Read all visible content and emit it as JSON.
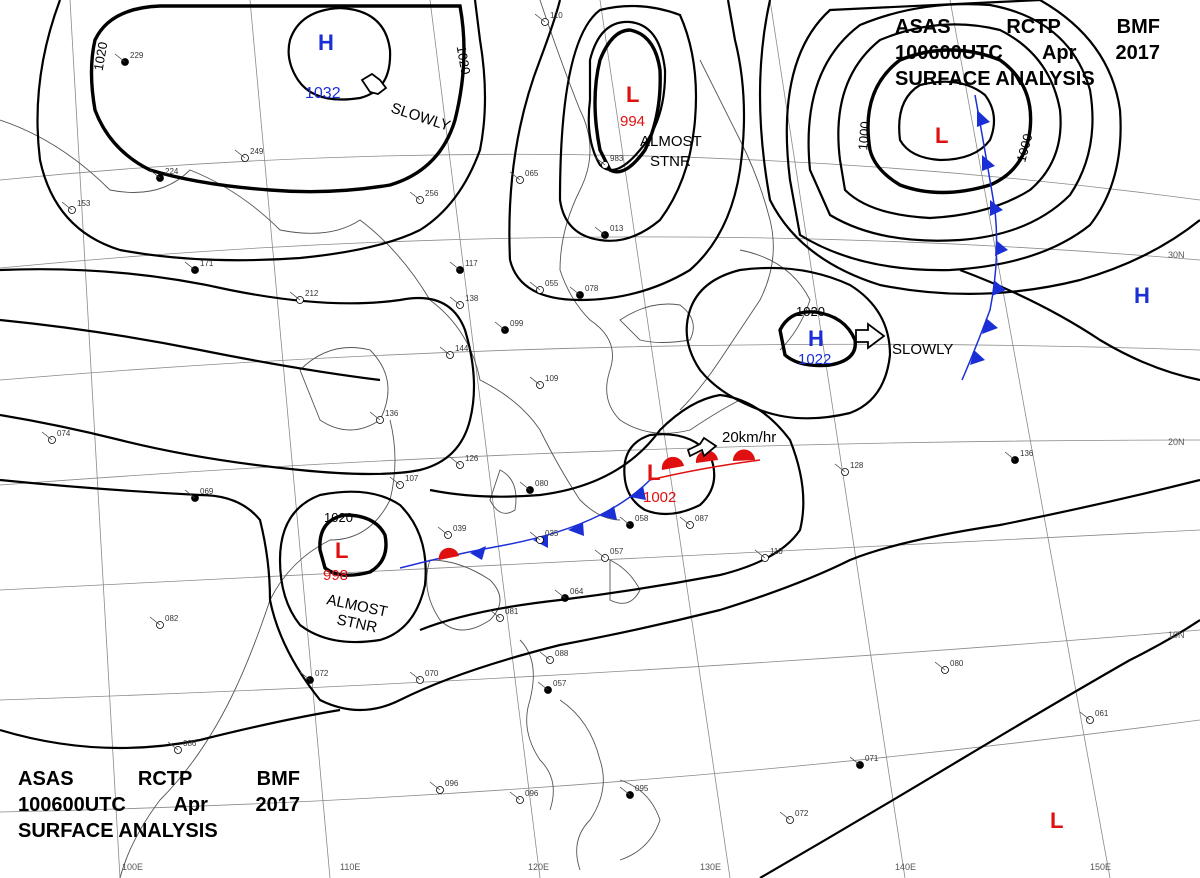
{
  "header": {
    "line1": [
      "ASAS",
      "RCTP",
      "BMF"
    ],
    "line2": [
      "100600UTC",
      "Apr",
      "2017"
    ],
    "line3": "SURFACE ANALYSIS"
  },
  "high_centers": [
    {
      "id": "h1",
      "letter": "H",
      "pressure": "1032"
    },
    {
      "id": "h2",
      "letter": "H",
      "pressure": "1022"
    },
    {
      "id": "h3",
      "letter": "H",
      "pressure": ""
    }
  ],
  "low_centers": [
    {
      "id": "l1",
      "letter": "L",
      "pressure": "994"
    },
    {
      "id": "l2",
      "letter": "L",
      "pressure": ""
    },
    {
      "id": "l3",
      "letter": "L",
      "pressure": "998"
    },
    {
      "id": "l4",
      "letter": "L",
      "pressure": "1002"
    },
    {
      "id": "l5",
      "letter": "L",
      "pressure": ""
    }
  ],
  "isobar_labels": [
    "1020",
    "1020",
    "1020",
    "1000",
    "1000",
    "1020"
  ],
  "motion_labels": {
    "slowly_1": "SLOWLY",
    "slowly_2": "SLOWLY",
    "almost_1a": "ALMOST",
    "almost_1b": "STNR",
    "almost_2a": "ALMOST",
    "almost_2b": "STNR",
    "speed": "20km/hr"
  },
  "lat_labels": [
    "30N",
    "20N",
    "10N"
  ],
  "lon_labels": [
    "100E",
    "110E",
    "120E",
    "130E",
    "140E",
    "150E"
  ],
  "station_samples": [
    "229",
    "110",
    "249",
    "224",
    "153",
    "256",
    "171",
    "212",
    "126",
    "117",
    "065",
    "055",
    "078",
    "144",
    "138",
    "099",
    "136",
    "109",
    "080",
    "107",
    "074",
    "069",
    "039",
    "035",
    "058",
    "087",
    "057",
    "064",
    "081",
    "082",
    "072",
    "070",
    "088",
    "057",
    "096",
    "096",
    "095",
    "086",
    "128",
    "136",
    "110",
    "080",
    "071",
    "072",
    "061",
    "013",
    "983"
  ],
  "colors": {
    "high": "#1a2fd6",
    "low": "#e01010",
    "front_cold": "#1a2fd6",
    "front_warm": "#e01010",
    "isobar": "#000000",
    "grid": "#888888"
  }
}
